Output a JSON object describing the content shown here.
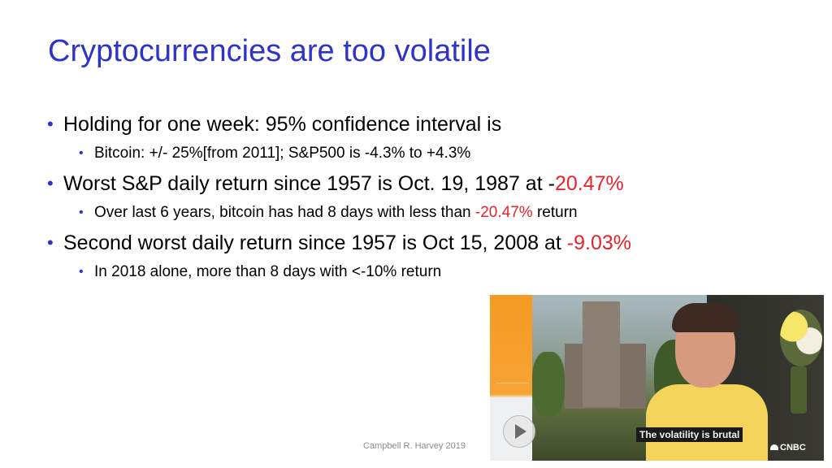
{
  "slide": {
    "title": "Cryptocurrencies are too volatile",
    "bullets": [
      {
        "text": "Holding for one week: 95% confidence interval is",
        "sub": [
          {
            "text": "Bitcoin: +/- 25%[from 2011]; S&P500 is -4.3% to +4.3%"
          }
        ]
      },
      {
        "text_prefix": "Worst S&P daily return since 1957 is Oct. 19, 1987 at -",
        "text_highlight": "20.47%",
        "sub": [
          {
            "text_prefix": "Over last 6 years, bitcoin has had 8 days with less than ",
            "text_highlight": "-20.47%",
            "text_suffix": " return"
          }
        ]
      },
      {
        "text_prefix": "Second worst daily return since 1957 is Oct 15, 2008 at ",
        "text_highlight": "-9.03%",
        "sub": [
          {
            "text": "In 2018 alone, more than 8 days with <-10% return"
          }
        ]
      }
    ],
    "footer": "Campbell R. Harvey 2019"
  },
  "video": {
    "caption": "The volatility is brutal",
    "network_logo": "CNBC",
    "play_icon": "play-icon"
  },
  "colors": {
    "title": "#2e34c8",
    "bullet_marker": "#2e34c8",
    "highlight": "#e8232a",
    "body_text": "#000000"
  }
}
